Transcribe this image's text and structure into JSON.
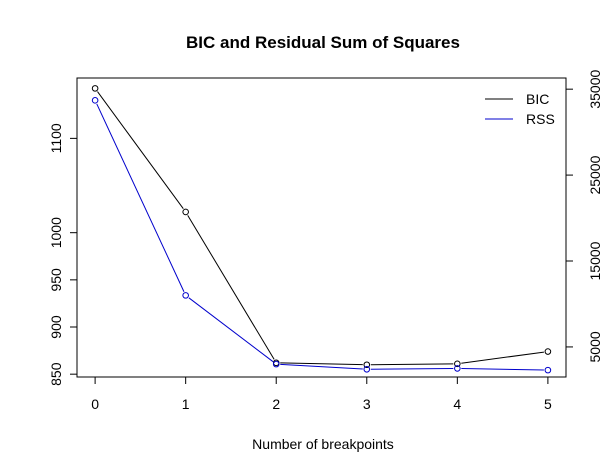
{
  "chart_data": {
    "type": "line",
    "title": "BIC and Residual Sum of Squares",
    "xlabel": "Number of breakpoints",
    "x": [
      0,
      1,
      2,
      3,
      4,
      5
    ],
    "x_ticks": [
      "0",
      "1",
      "2",
      "3",
      "4",
      "5"
    ],
    "y_left": {
      "ticks": [
        "850",
        "900",
        "950",
        "1000",
        "1100"
      ],
      "tick_values": [
        850,
        900,
        950,
        1000,
        1100
      ],
      "lim": [
        847,
        1164
      ]
    },
    "y_right": {
      "ticks": [
        "5000",
        "15000",
        "25000",
        "35000"
      ],
      "tick_values": [
        5000,
        15000,
        25000,
        35000
      ],
      "lim": [
        1500,
        36300
      ]
    },
    "series": [
      {
        "name": "BIC",
        "axis": "left",
        "color": "#000000",
        "values": [
          1153,
          1022,
          862,
          860,
          861,
          874
        ]
      },
      {
        "name": "RSS",
        "axis": "right",
        "color": "#0000cc",
        "values": [
          33700,
          11000,
          3000,
          2400,
          2500,
          2300
        ]
      }
    ],
    "legend_position": "top-right",
    "grid": false
  }
}
